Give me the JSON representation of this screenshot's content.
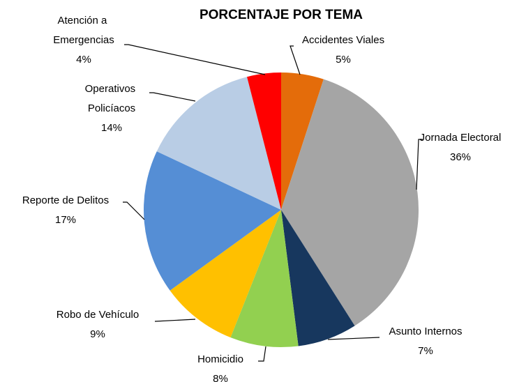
{
  "chart_data": {
    "type": "pie",
    "title": "PORCENTAJE POR TEMA",
    "categories": [
      "Accidentes Viales",
      "Jornada Electoral",
      "Asunto Internos",
      "Homicidio",
      "Robo de Vehículo",
      "Reporte de Delitos",
      "Operativos Policíacos",
      "Atención a Emergencias"
    ],
    "values": [
      5,
      36,
      7,
      8,
      9,
      17,
      14,
      4
    ],
    "value_labels": [
      "5%",
      "36%",
      "7%",
      "8%",
      "9%",
      "17%",
      "14%",
      "4%"
    ],
    "colors": [
      "#e46c0a",
      "#a5a5a5",
      "#17375e",
      "#92d050",
      "#ffc000",
      "#558ed5",
      "#b9cde5",
      "#ff0000"
    ]
  }
}
